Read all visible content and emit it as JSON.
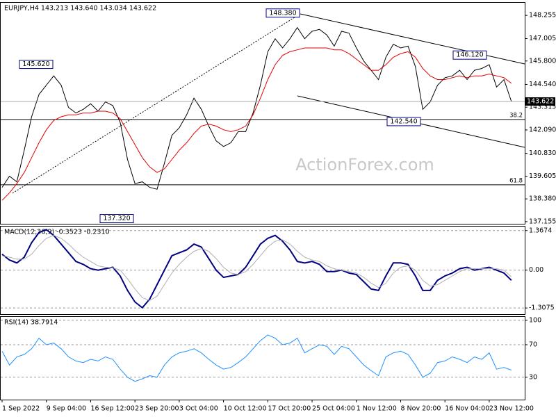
{
  "watermark": "ActionForex.com",
  "chart_data": [
    {
      "type": "line",
      "title": "EURJPY,H4 143.213 143.640 143.034 143.622",
      "categories": [
        "1 Sep 2022",
        null,
        null,
        null,
        null,
        null,
        "9 Sep 04:00",
        null,
        null,
        null,
        null,
        null,
        "16 Sep 12:00",
        null,
        null,
        null,
        null,
        null,
        "23 Sep 20:00",
        null,
        null,
        null,
        null,
        null,
        "3 Oct 04:00",
        null,
        null,
        null,
        null,
        null,
        "10 Oct 12:00",
        null,
        null,
        null,
        null,
        null,
        "17 Oct 20:00",
        null,
        null,
        null,
        null,
        null,
        "25 Oct 04:00",
        null,
        null,
        null,
        null,
        null,
        "1 Nov 12:00",
        null,
        null,
        null,
        null,
        null,
        "8 Nov 20:00",
        null,
        null,
        null,
        null,
        null,
        "16 Nov 04:00",
        null,
        null,
        null,
        null,
        null,
        "23 Nov 12:00",
        null,
        null,
        null
      ],
      "series": [
        {
          "color": "#000000",
          "values": [
            139.0,
            139.6,
            139.3,
            141.0,
            142.8,
            144.0,
            144.5,
            145.0,
            144.5,
            143.3,
            143.0,
            143.2,
            143.5,
            143.1,
            143.6,
            143.4,
            142.5,
            140.5,
            139.2,
            139.3,
            139.0,
            138.9,
            140.3,
            141.8,
            142.2,
            142.9,
            143.8,
            143.2,
            142.3,
            141.5,
            141.2,
            141.4,
            142.0,
            142.0,
            143.0,
            144.5,
            146.3,
            147.0,
            146.5,
            147.0,
            147.6,
            147.0,
            147.4,
            147.5,
            147.2,
            146.6,
            147.4,
            147.3,
            146.5,
            145.8,
            145.3,
            144.8,
            146.0,
            146.7,
            146.5,
            146.6,
            145.5,
            143.2,
            143.6,
            144.5,
            144.9,
            145.0,
            145.3,
            144.8,
            145.3,
            145.4,
            145.6,
            144.4,
            144.8,
            143.622
          ]
        },
        {
          "color": "#e00000",
          "values": [
            138.3,
            138.7,
            139.2,
            139.8,
            140.6,
            141.4,
            142.1,
            142.6,
            142.8,
            142.9,
            142.9,
            143.0,
            143.0,
            143.1,
            143.1,
            143.0,
            142.7,
            142.0,
            141.3,
            140.6,
            140.1,
            139.8,
            140.0,
            140.5,
            141.0,
            141.4,
            141.9,
            142.3,
            142.4,
            142.3,
            142.1,
            142.0,
            142.1,
            142.3,
            142.9,
            143.8,
            144.8,
            145.6,
            146.1,
            146.3,
            146.4,
            146.5,
            146.5,
            146.5,
            146.5,
            146.4,
            146.4,
            146.2,
            145.9,
            145.6,
            145.3,
            145.3,
            145.6,
            146.0,
            146.2,
            146.3,
            146.0,
            145.4,
            145.0,
            144.8,
            144.8,
            144.9,
            145.0,
            144.9,
            145.0,
            145.0,
            145.1,
            145.0,
            144.9,
            144.6
          ]
        }
      ],
      "ylim": [
        137.04,
        148.97
      ],
      "yticks": [
        148.255,
        147.005,
        {
          "value": 145.8,
          "label": "145.800"
        },
        {
          "value": 144.54,
          "label": "144.540"
        },
        143.315,
        {
          "value": 142.09,
          "label": "142.090"
        },
        {
          "value": 140.83,
          "label": "140.830"
        },
        139.605,
        {
          "value": 138.38,
          "label": "138.380"
        },
        137.155
      ],
      "grid": false,
      "fib_levels": [
        {
          "value": 142.65,
          "label": "38.2"
        },
        {
          "value": 139.14,
          "label": "61.8"
        }
      ],
      "annotations": [
        {
          "value": 145.62,
          "label": "145.620"
        },
        {
          "value": 148.38,
          "label": "148.380"
        },
        {
          "value": 137.32,
          "label": "137.320"
        },
        {
          "value": 142.54,
          "label": "142.540"
        },
        {
          "value": 146.12,
          "label": "146.120"
        }
      ]
    },
    {
      "type": "line",
      "title": "MACD(12,26,9) -0.3523 -0.2310",
      "series": [
        {
          "color": "#000080",
          "values": [
            0.55,
            0.35,
            0.25,
            0.45,
            0.95,
            1.3,
            1.4,
            1.2,
            0.9,
            0.6,
            0.3,
            0.2,
            0.05,
            0.0,
            0.05,
            0.1,
            -0.2,
            -0.7,
            -1.1,
            -1.3,
            -1.0,
            -0.5,
            0.0,
            0.5,
            0.6,
            0.7,
            0.9,
            0.8,
            0.4,
            0.0,
            -0.25,
            -0.2,
            -0.15,
            0.1,
            0.5,
            0.9,
            1.1,
            1.2,
            1.0,
            0.7,
            0.3,
            0.25,
            0.3,
            0.2,
            -0.05,
            -0.05,
            0.0,
            -0.1,
            -0.15,
            -0.4,
            -0.65,
            -0.7,
            -0.2,
            0.25,
            0.25,
            0.2,
            -0.2,
            -0.7,
            -0.7,
            -0.35,
            -0.2,
            -0.1,
            0.05,
            0.1,
            0.0,
            0.05,
            0.1,
            0.0,
            -0.1,
            -0.35
          ]
        },
        {
          "color": "#b0b0b0",
          "values": [
            0.5,
            0.45,
            0.38,
            0.38,
            0.55,
            0.85,
            1.1,
            1.2,
            1.1,
            0.9,
            0.65,
            0.45,
            0.3,
            0.15,
            0.1,
            0.08,
            0.0,
            -0.3,
            -0.65,
            -0.95,
            -1.05,
            -0.9,
            -0.5,
            -0.1,
            0.2,
            0.45,
            0.65,
            0.75,
            0.65,
            0.4,
            0.1,
            -0.1,
            -0.15,
            -0.05,
            0.2,
            0.5,
            0.8,
            1.0,
            1.05,
            0.9,
            0.65,
            0.45,
            0.35,
            0.3,
            0.15,
            0.05,
            0.0,
            -0.05,
            -0.1,
            -0.25,
            -0.45,
            -0.6,
            -0.45,
            -0.1,
            0.1,
            0.15,
            0.0,
            -0.35,
            -0.55,
            -0.5,
            -0.35,
            -0.2,
            -0.05,
            0.05,
            0.05,
            0.05,
            0.05,
            0.05,
            0.0,
            -0.23
          ]
        }
      ],
      "ylim": [
        -1.52,
        1.53
      ],
      "yticks": [
        1.3674,
        {
          "value": 0,
          "label": "0.00"
        },
        -1.3075
      ],
      "grid": true
    },
    {
      "type": "line",
      "title": "RSI(14) 38.7914",
      "series": [
        {
          "color": "#1e90ff",
          "values": [
            62,
            45,
            55,
            58,
            65,
            78,
            70,
            72,
            65,
            55,
            50,
            48,
            52,
            50,
            55,
            52,
            40,
            30,
            25,
            28,
            32,
            30,
            45,
            55,
            60,
            62,
            65,
            60,
            52,
            45,
            40,
            42,
            48,
            55,
            65,
            75,
            82,
            78,
            70,
            72,
            78,
            60,
            65,
            70,
            68,
            58,
            68,
            65,
            55,
            45,
            38,
            32,
            55,
            60,
            62,
            58,
            45,
            30,
            35,
            48,
            50,
            55,
            52,
            48,
            55,
            52,
            60,
            40,
            42,
            38.79
          ]
        }
      ],
      "ylim": [
        2.5,
        105
      ],
      "yticks": [
        100,
        70,
        30
      ],
      "grid": true
    }
  ]
}
